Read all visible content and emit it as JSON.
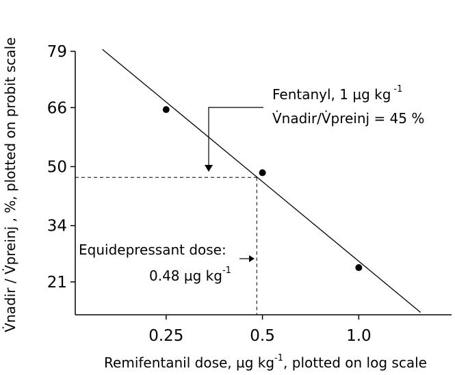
{
  "chart_data": {
    "type": "scatter",
    "ylabel": "V̇nadir / V̇preinj , %, plotted on probit scale",
    "xlabel": [
      "Remifentanil dose, µg kg",
      "-1",
      ", plotted on log scale"
    ],
    "xscale": "log",
    "yscale": "probit",
    "xlim": [
      0.13,
      1.95
    ],
    "ylim": [
      15,
      79
    ],
    "xticks": [
      0.25,
      0.5,
      {
        "value": 1,
        "label": "1.0"
      }
    ],
    "yticks": [
      21,
      34,
      50,
      66,
      79
    ],
    "color": "#000000",
    "points": {
      "x": [
        0.25,
        0.5,
        1
      ],
      "y": [
        65.5,
        48.3,
        24
      ]
    },
    "fit_line": {
      "x": [
        0.158,
        1.56
      ],
      "y": [
        79.4,
        15.4
      ]
    },
    "crosshair": {
      "x": 0.48,
      "y": 47
    },
    "annotations": {
      "fentanyl": [
        "Fentanyl, 1 µg kg",
        "-1"
      ],
      "ratio": "V̇nadir/V̇preinj = 45 %",
      "equi": "Equidepressant dose:",
      "dose": [
        "0.48 µg kg",
        "-1"
      ]
    }
  }
}
